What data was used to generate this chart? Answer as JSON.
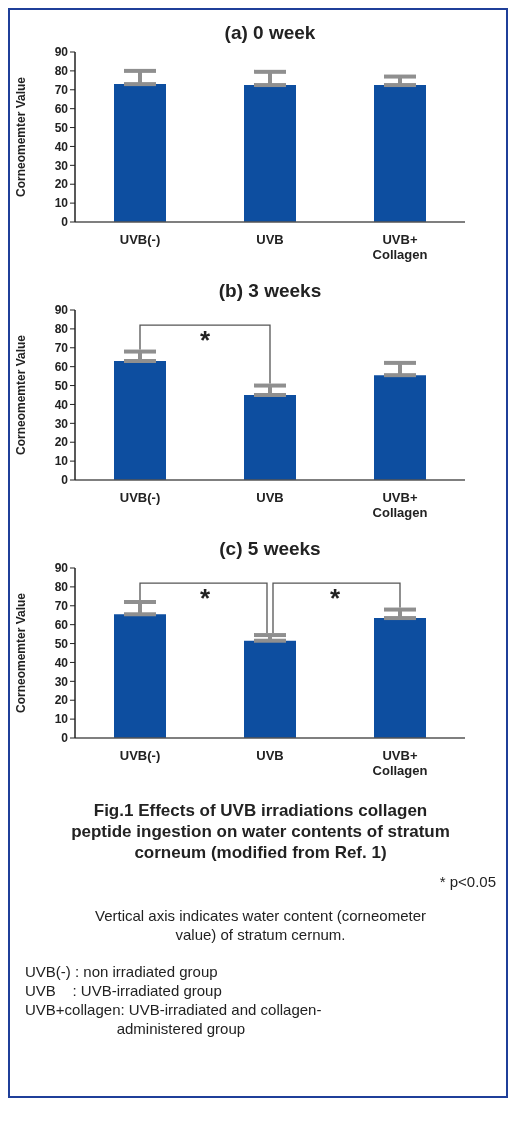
{
  "chart_data": [
    {
      "type": "bar",
      "title": "(a) 0 week",
      "ylabel": "Corneomemter Value",
      "categories": [
        "UVB(-)",
        "UVB",
        "UVB+ Collagen"
      ],
      "values": [
        73,
        72.5,
        72.5
      ],
      "errors": [
        [
          73,
          80
        ],
        [
          72.5,
          79.5
        ],
        [
          72.5,
          77
        ]
      ],
      "color": "#0d4ea0",
      "ylim": [
        0,
        90
      ],
      "yticks": [
        0,
        10,
        20,
        30,
        40,
        50,
        60,
        70,
        80,
        90
      ],
      "grid": false,
      "legend": false
    },
    {
      "type": "bar",
      "title": "(b) 3 weeks",
      "ylabel": "Corneomemter Value",
      "categories": [
        "UVB(-)",
        "UVB",
        "UVB+ Collagen"
      ],
      "values": [
        63,
        45,
        55.5
      ],
      "errors": [
        [
          63,
          68
        ],
        [
          45,
          50
        ],
        [
          55.5,
          62
        ]
      ],
      "color": "#0d4ea0",
      "ylim": [
        0,
        90
      ],
      "yticks": [
        0,
        10,
        20,
        30,
        40,
        50,
        60,
        70,
        80,
        90
      ],
      "grid": false,
      "legend": false,
      "annotations": [
        "*"
      ]
    },
    {
      "type": "bar",
      "title": "(c) 5 weeks",
      "ylabel": "Corneomemter Value",
      "categories": [
        "UVB(-)",
        "UVB",
        "UVB+ Collagen"
      ],
      "values": [
        65.5,
        51.5,
        63.5
      ],
      "errors": [
        [
          65.5,
          72
        ],
        [
          51.5,
          54.5
        ],
        [
          63.5,
          68
        ]
      ],
      "color": "#0d4ea0",
      "ylim": [
        0,
        90
      ],
      "yticks": [
        0,
        10,
        20,
        30,
        40,
        50,
        60,
        70,
        80,
        90
      ],
      "grid": false,
      "legend": false,
      "annotations": [
        "*",
        "*",
        "Fig.1 Effects of UVB irradiations collagen peptide ingestion on water contents of stratum corneum (modified from Ref. 1)",
        "* p<0.05",
        "Vertical axis indicates water content (corneometer value) of stratum cernum.",
        "UVB(-) : non irradiated group\nUVB    : UVB-irradiated group\nUVB+collagen: UVB-irradiated and collagen-\n                      administered group"
      ]
    }
  ]
}
